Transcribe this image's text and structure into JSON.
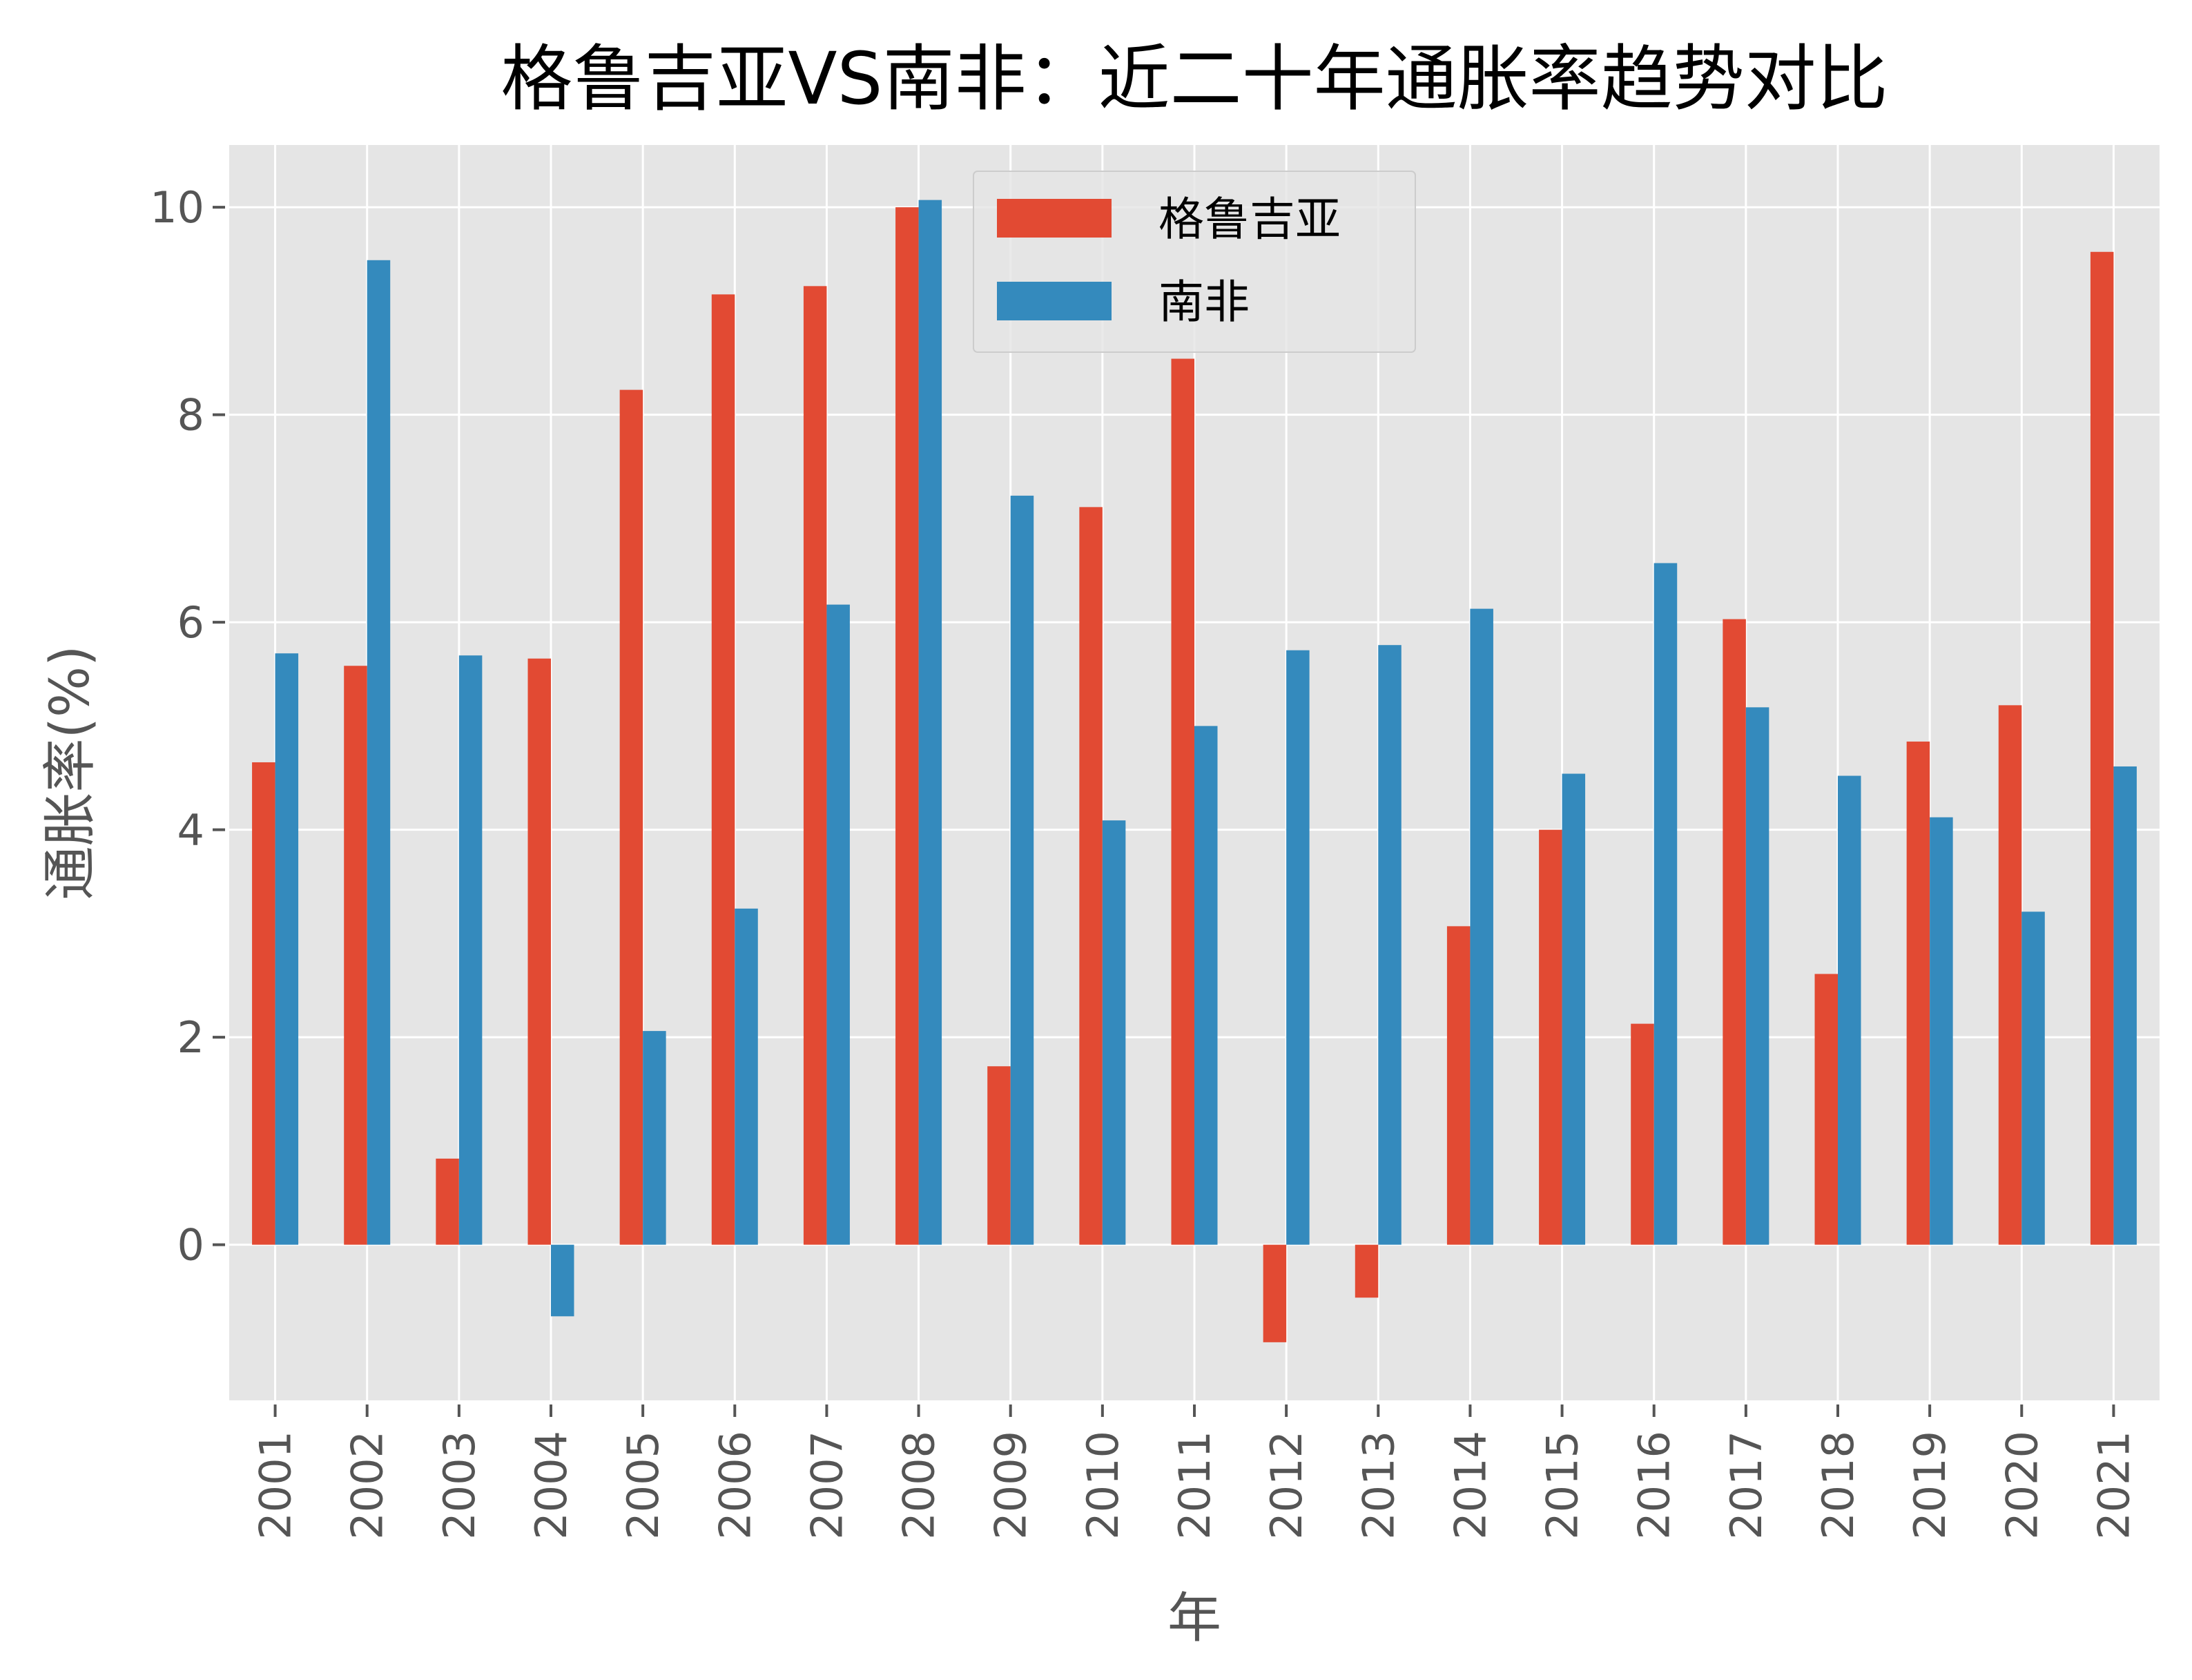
{
  "chart_data": {
    "type": "bar",
    "title": "格鲁吉亚VS南非：近二十年通胀率趋势对比",
    "xlabel": "年",
    "ylabel": "通胀率(%)",
    "categories": [
      "2001",
      "2002",
      "2003",
      "2004",
      "2005",
      "2006",
      "2007",
      "2008",
      "2009",
      "2010",
      "2011",
      "2012",
      "2013",
      "2014",
      "2015",
      "2016",
      "2017",
      "2018",
      "2019",
      "2020",
      "2021"
    ],
    "yticks": [
      "0",
      "2",
      "4",
      "6",
      "8",
      "10"
    ],
    "ylim": [
      -1.5,
      10.6
    ],
    "grid": true,
    "legend_position": "top-center",
    "series": [
      {
        "name": "格鲁吉亚",
        "color": "#E24A33",
        "values": [
          4.65,
          5.58,
          0.83,
          5.65,
          8.24,
          9.16,
          9.24,
          10.0,
          1.72,
          7.11,
          8.54,
          -0.94,
          -0.51,
          3.07,
          4.0,
          2.13,
          6.03,
          2.61,
          4.85,
          5.2,
          9.57
        ]
      },
      {
        "name": "南非",
        "color": "#348ABD",
        "values": [
          5.7,
          9.49,
          5.68,
          -0.69,
          2.06,
          3.24,
          6.17,
          10.07,
          7.22,
          4.09,
          5.0,
          5.73,
          5.78,
          6.13,
          4.54,
          6.57,
          5.18,
          4.52,
          4.12,
          3.21,
          4.61
        ]
      }
    ]
  }
}
